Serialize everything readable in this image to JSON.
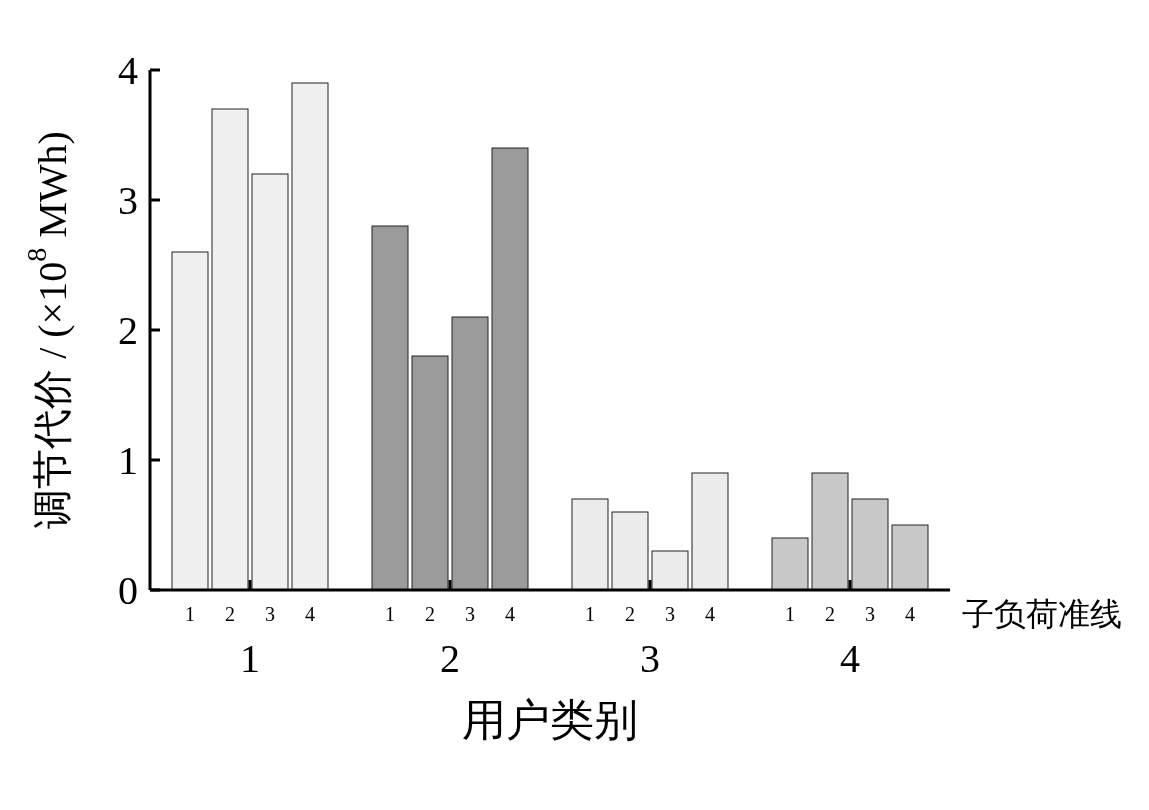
{
  "chart_data": {
    "type": "bar",
    "xlabel": "用户类别",
    "ylabel": "调节代价 / (×10$^{8}$ MWh)",
    "legend_title": "子负荷准线",
    "categories": [
      "1",
      "2",
      "3",
      "4"
    ],
    "ylim": [
      0,
      4
    ],
    "yticks": [
      0,
      1,
      2,
      3,
      4
    ],
    "series": [
      {
        "name": "1",
        "colors": [
          "#f0f0f0",
          "#9b9b9b",
          "#ececec",
          "#c8c8c8"
        ],
        "values": [
          2.6,
          2.8,
          0.7,
          0.4
        ]
      },
      {
        "name": "2",
        "colors": [
          "#f0f0f0",
          "#9b9b9b",
          "#ececec",
          "#c8c8c8"
        ],
        "values": [
          3.7,
          1.8,
          0.6,
          0.9
        ]
      },
      {
        "name": "3",
        "colors": [
          "#f0f0f0",
          "#9b9b9b",
          "#ececec",
          "#c8c8c8"
        ],
        "values": [
          3.2,
          2.1,
          0.3,
          0.7
        ]
      },
      {
        "name": "4",
        "colors": [
          "#f0f0f0",
          "#9b9b9b",
          "#ececec",
          "#c8c8c8"
        ],
        "values": [
          3.9,
          3.4,
          0.9,
          0.5
        ]
      }
    ]
  }
}
